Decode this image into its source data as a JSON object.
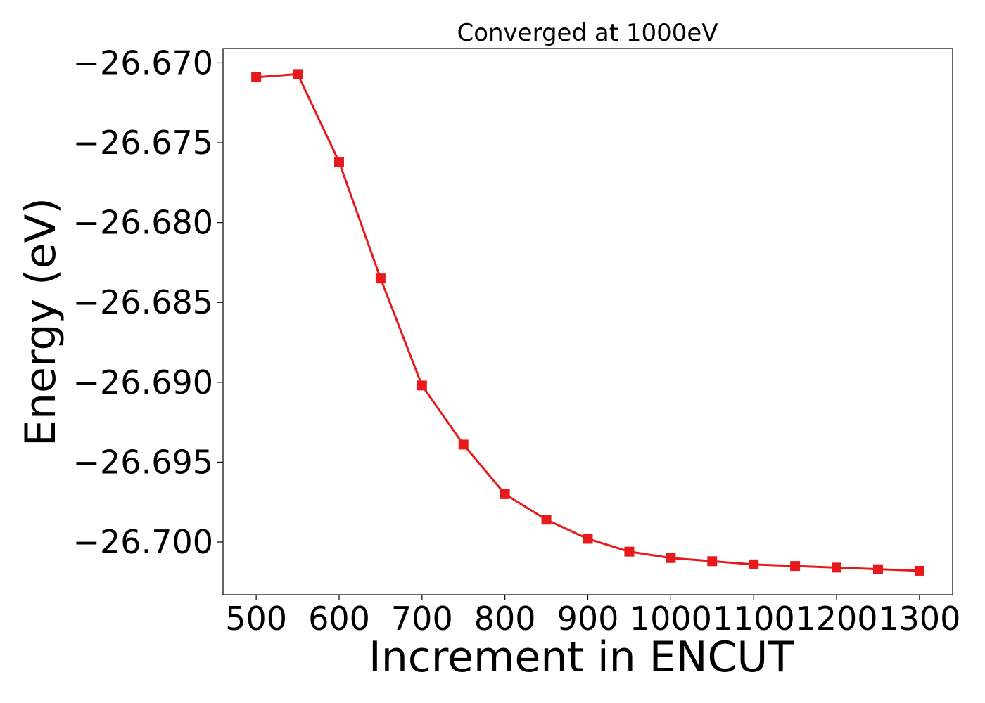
{
  "chart_data": {
    "type": "line",
    "title": "Converged at 1000eV",
    "xlabel": "Increment in ENCUT",
    "ylabel": "Energy (eV)",
    "x": [
      500,
      550,
      600,
      650,
      700,
      750,
      800,
      850,
      900,
      950,
      1000,
      1050,
      1100,
      1150,
      1200,
      1250,
      1300
    ],
    "series": [
      {
        "values": [
          -26.6709,
          -26.6707,
          -26.6762,
          -26.6835,
          -26.6902,
          -26.6939,
          -26.697,
          -26.6986,
          -26.6998,
          -26.7006,
          -26.701,
          -26.7012,
          -26.7014,
          -26.7015,
          -26.7016,
          -26.7017,
          -26.7018
        ],
        "color": "#e8191c",
        "marker": "square"
      }
    ],
    "xticks": [
      500,
      600,
      700,
      800,
      900,
      1000,
      1100,
      1200,
      1300
    ],
    "xtick_labels": [
      "500",
      "600",
      "700",
      "800",
      "900",
      "1000",
      "1100",
      "1200",
      "1300"
    ],
    "yticks": [
      -26.67,
      -26.675,
      -26.68,
      -26.685,
      -26.69,
      -26.695,
      -26.7
    ],
    "ytick_labels": [
      "−26.670",
      "−26.675",
      "−26.680",
      "−26.685",
      "−26.690",
      "−26.695",
      "−26.700"
    ],
    "xlim": [
      460,
      1340
    ],
    "ylim": [
      -26.7033,
      -26.6691
    ],
    "grid": false,
    "legend": false
  }
}
